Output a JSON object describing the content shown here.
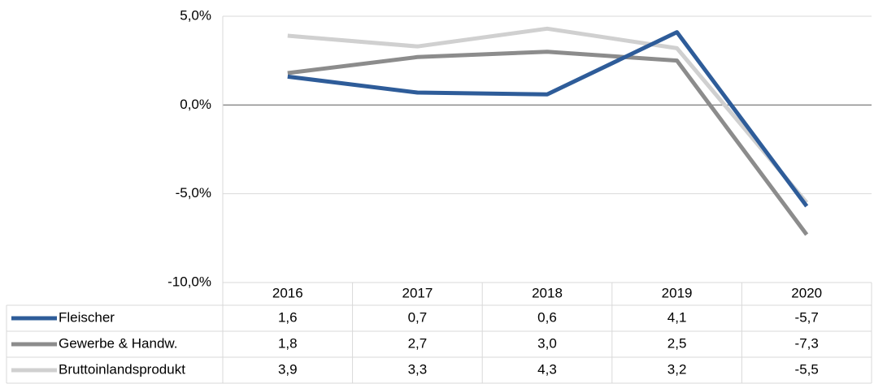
{
  "chart_data": {
    "type": "line",
    "categories": [
      "2016",
      "2017",
      "2018",
      "2019",
      "2020"
    ],
    "series": [
      {
        "name": "Fleischer",
        "color": "#2e5c99",
        "values": [
          1.6,
          0.7,
          0.6,
          4.1,
          -5.7
        ],
        "value_labels": [
          "1,6",
          "0,7",
          "0,6",
          "4,1",
          "-5,7"
        ]
      },
      {
        "name": "Gewerbe & Handw.",
        "color": "#8c8c8c",
        "values": [
          1.8,
          2.7,
          3.0,
          2.5,
          -7.3
        ],
        "value_labels": [
          "1,8",
          "2,7",
          "3,0",
          "2,5",
          "-7,3"
        ]
      },
      {
        "name": "Bruttoinlandsprodukt",
        "color": "#d0d0d0",
        "values": [
          3.9,
          3.3,
          4.3,
          3.2,
          -5.5
        ],
        "value_labels": [
          "3,9",
          "3,3",
          "4,3",
          "3,2",
          "-5,5"
        ]
      }
    ],
    "ylim": [
      -10,
      5
    ],
    "yticks": [
      {
        "value": 5,
        "label": "5,0%"
      },
      {
        "value": 0,
        "label": "0,0%"
      },
      {
        "value": -5,
        "label": "-5,0%"
      },
      {
        "value": -10,
        "label": "-10,0%"
      }
    ],
    "grid": true
  }
}
